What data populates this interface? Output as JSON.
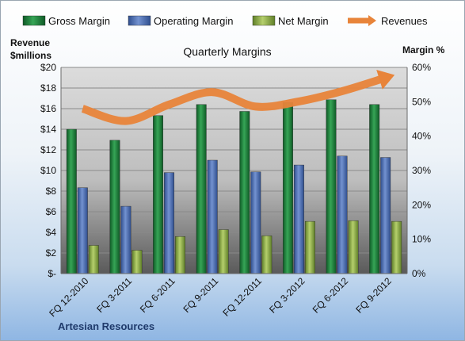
{
  "chart_data": {
    "type": "bar",
    "title": "Quarterly Margins",
    "company": "Artesian Resources",
    "categories": [
      "FQ 12-2010",
      "FQ 3-2011",
      "FQ 6-2011",
      "FQ 9-2011",
      "FQ 12-2011",
      "FQ 3-2012",
      "FQ 6-2012",
      "FQ 9-2012"
    ],
    "series": [
      {
        "name": "Gross Margin",
        "axis": "right",
        "values": [
          42,
          38.8,
          46,
          49.2,
          47.2,
          49.8,
          50.6,
          49.2
        ],
        "color": "#1e7a3c"
      },
      {
        "name": "Operating Margin",
        "axis": "right",
        "values": [
          25,
          19.6,
          29.4,
          33,
          29.6,
          31.6,
          34.2,
          33.8
        ],
        "color": "#4f6fb0"
      },
      {
        "name": "Net Margin",
        "axis": "right",
        "values": [
          8.2,
          6.8,
          10.8,
          12.8,
          11,
          15.2,
          15.4,
          15.2
        ],
        "color": "#8fb04a"
      },
      {
        "name": "Revenues",
        "axis": "left",
        "type": "line",
        "values": [
          16.0,
          14.8,
          16.4,
          17.6,
          16.2,
          16.7,
          17.7,
          19.0
        ],
        "color": "#e8843a"
      }
    ],
    "y_left": {
      "label_line1": "Revenue",
      "label_line2": "$millions",
      "ylim": [
        0,
        20
      ],
      "ticks": [
        "$-",
        "$2",
        "$4",
        "$6",
        "$8",
        "$10",
        "$12",
        "$14",
        "$16",
        "$18",
        "$20"
      ]
    },
    "y_right": {
      "label": "Margin %",
      "ylim": [
        0,
        60
      ],
      "ticks": [
        "0%",
        "10%",
        "20%",
        "30%",
        "40%",
        "50%",
        "60%"
      ]
    },
    "legend_position": "top",
    "grid": true
  }
}
